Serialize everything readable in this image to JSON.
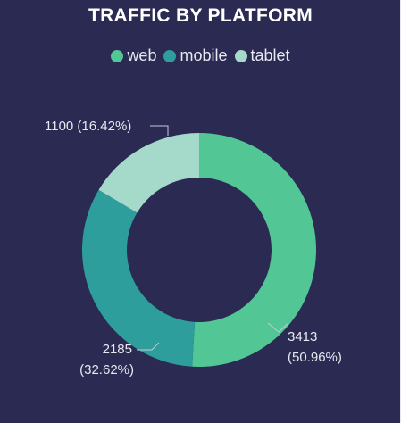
{
  "chart_data": {
    "type": "pie",
    "variant": "donut",
    "title": "TRAFFIC BY PLATFORM",
    "legend_position": "top",
    "categories": [
      "web",
      "mobile",
      "tablet"
    ],
    "values": [
      3413,
      2185,
      1100
    ],
    "percent_labels": [
      "50.96%",
      "32.62%",
      "16.42%"
    ],
    "colors": [
      "#52c795",
      "#2e9e9c",
      "#a5d9c9"
    ],
    "data_labels": {
      "web": [
        "3413",
        "(50.96%)"
      ],
      "mobile": [
        "2185",
        "(32.62%)"
      ],
      "tablet": [
        "1100 (16.42%)"
      ]
    }
  }
}
